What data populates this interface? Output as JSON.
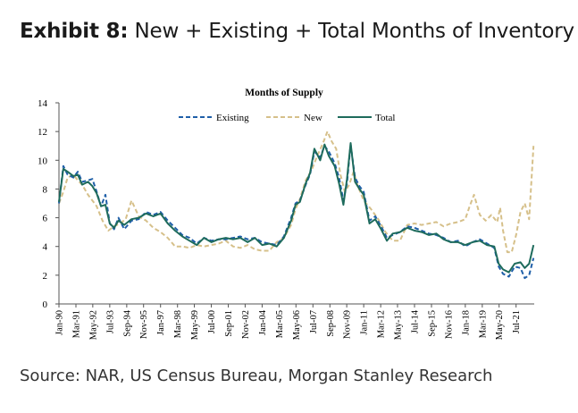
{
  "header": {
    "exhibit_label": "Exhibit 8:",
    "exhibit_title": "New + Existing + Total Months of Inventory"
  },
  "footer": {
    "source": "Source: NAR, US Census Bureau, Morgan Stanley Research"
  },
  "colors": {
    "existing": "#1f5fa8",
    "new": "#d6c08a",
    "total": "#1e6b5c",
    "axis": "#555555"
  },
  "chart_data": {
    "type": "line",
    "title": "Months of Supply",
    "xlabel": "",
    "ylabel": "",
    "ylim": [
      0,
      14
    ],
    "y_ticks": [
      "0",
      "2",
      "4",
      "6",
      "8",
      "10",
      "12",
      "14"
    ],
    "x_range": [
      1990.0,
      2022.75
    ],
    "x_tick_labels": [
      {
        "label": "Jan-90",
        "x": 1990.0
      },
      {
        "label": "Mar-91",
        "x": 1991.17
      },
      {
        "label": "May-92",
        "x": 1992.33
      },
      {
        "label": "Jul-93",
        "x": 1993.5
      },
      {
        "label": "Sep-94",
        "x": 1994.67
      },
      {
        "label": "Nov-95",
        "x": 1995.83
      },
      {
        "label": "Jan-97",
        "x": 1997.0
      },
      {
        "label": "Mar-98",
        "x": 1998.17
      },
      {
        "label": "May-99",
        "x": 1999.33
      },
      {
        "label": "Jul-00",
        "x": 2000.5
      },
      {
        "label": "Sep-01",
        "x": 2001.67
      },
      {
        "label": "Nov-02",
        "x": 2002.83
      },
      {
        "label": "Jan-04",
        "x": 2004.0
      },
      {
        "label": "Mar-05",
        "x": 2005.17
      },
      {
        "label": "May-06",
        "x": 2006.33
      },
      {
        "label": "Jul-07",
        "x": 2007.5
      },
      {
        "label": "Sep-08",
        "x": 2008.67
      },
      {
        "label": "Nov-09",
        "x": 2009.83
      },
      {
        "label": "Jan-11",
        "x": 2011.0
      },
      {
        "label": "Mar-12",
        "x": 2012.17
      },
      {
        "label": "May-13",
        "x": 2013.33
      },
      {
        "label": "Jul-14",
        "x": 2014.5
      },
      {
        "label": "Sep-15",
        "x": 2015.67
      },
      {
        "label": "Nov-16",
        "x": 2016.83
      },
      {
        "label": "Jan-18",
        "x": 2018.0
      },
      {
        "label": "Mar-19",
        "x": 2019.17
      },
      {
        "label": "May-20",
        "x": 2020.33
      },
      {
        "label": "Jul-21",
        "x": 2021.5
      }
    ],
    "legend": {
      "placement": "top",
      "entries": [
        "Existing",
        "New",
        "Total"
      ]
    },
    "series": [
      {
        "name": "Existing",
        "style": "dashed",
        "x": [
          1990.0,
          1990.3,
          1990.6,
          1991.0,
          1991.3,
          1991.6,
          1992.0,
          1992.3,
          1992.6,
          1992.9,
          1993.2,
          1993.5,
          1993.8,
          1994.1,
          1994.5,
          1995.0,
          1995.5,
          1996.0,
          1996.5,
          1997.0,
          1997.5,
          1998.0,
          1998.5,
          1999.0,
          1999.5,
          2000.0,
          2000.5,
          2001.0,
          2001.5,
          2002.0,
          2002.5,
          2003.0,
          2003.5,
          2004.0,
          2004.5,
          2005.0,
          2005.5,
          2006.0,
          2006.3,
          2006.6,
          2007.0,
          2007.3,
          2007.6,
          2008.0,
          2008.3,
          2008.6,
          2009.0,
          2009.3,
          2009.6,
          2009.85,
          2010.1,
          2010.4,
          2010.7,
          2011.0,
          2011.4,
          2011.8,
          2012.2,
          2012.6,
          2013.0,
          2013.5,
          2014.0,
          2014.5,
          2015.0,
          2015.5,
          2016.0,
          2016.5,
          2017.0,
          2017.5,
          2018.0,
          2018.5,
          2019.0,
          2019.5,
          2020.0,
          2020.3,
          2020.6,
          2021.0,
          2021.4,
          2021.8,
          2022.1,
          2022.4,
          2022.7
        ],
        "y": [
          7.0,
          9.6,
          9.0,
          8.8,
          9.2,
          8.5,
          8.6,
          8.7,
          7.8,
          6.8,
          7.6,
          5.6,
          5.2,
          6.0,
          5.2,
          5.8,
          5.9,
          6.4,
          6.2,
          6.4,
          5.8,
          5.3,
          4.8,
          4.6,
          4.2,
          4.6,
          4.4,
          4.5,
          4.5,
          4.6,
          4.7,
          4.5,
          4.6,
          4.3,
          4.2,
          4.1,
          4.7,
          6.0,
          7.0,
          7.2,
          8.3,
          9.0,
          10.6,
          10.2,
          11.0,
          10.6,
          9.8,
          8.8,
          7.2,
          8.4,
          11.1,
          8.8,
          8.2,
          7.8,
          5.8,
          6.1,
          5.4,
          4.6,
          4.8,
          5.0,
          5.4,
          5.3,
          5.1,
          4.9,
          4.8,
          4.6,
          4.3,
          4.4,
          4.0,
          4.3,
          4.5,
          4.2,
          3.9,
          2.6,
          2.1,
          1.9,
          2.6,
          2.5,
          1.8,
          2.0,
          3.2
        ]
      },
      {
        "name": "New",
        "style": "dashed",
        "x": [
          1990.0,
          1990.3,
          1990.6,
          1991.0,
          1991.3,
          1991.6,
          1992.0,
          1992.3,
          1992.6,
          1993.0,
          1993.4,
          1993.8,
          1994.2,
          1994.6,
          1995.0,
          1995.5,
          1996.0,
          1996.5,
          1997.0,
          1997.5,
          1998.0,
          1998.5,
          1999.0,
          1999.5,
          2000.0,
          2000.5,
          2001.0,
          2001.5,
          2002.0,
          2002.5,
          2003.0,
          2003.5,
          2004.0,
          2004.5,
          2005.0,
          2005.5,
          2006.0,
          2006.3,
          2006.6,
          2007.0,
          2007.4,
          2007.8,
          2008.2,
          2008.5,
          2008.8,
          2009.1,
          2009.4,
          2009.7,
          2010.0,
          2010.3,
          2010.6,
          2011.0,
          2011.5,
          2012.0,
          2012.5,
          2013.0,
          2013.5,
          2014.0,
          2014.5,
          2015.0,
          2015.5,
          2016.0,
          2016.5,
          2017.0,
          2017.5,
          2018.0,
          2018.3,
          2018.6,
          2019.0,
          2019.4,
          2019.8,
          2020.2,
          2020.4,
          2020.6,
          2020.9,
          2021.2,
          2021.5,
          2021.8,
          2022.1,
          2022.4,
          2022.7
        ],
        "y": [
          7.0,
          7.8,
          8.8,
          9.0,
          8.6,
          8.3,
          7.6,
          7.2,
          6.8,
          5.8,
          5.1,
          5.4,
          5.6,
          5.9,
          7.2,
          6.1,
          5.8,
          5.3,
          5.0,
          4.6,
          4.0,
          4.0,
          3.9,
          4.1,
          4.0,
          4.1,
          4.2,
          4.4,
          4.0,
          3.9,
          4.1,
          3.8,
          3.7,
          3.7,
          4.3,
          4.6,
          5.5,
          6.6,
          7.3,
          8.6,
          9.3,
          10.3,
          11.2,
          12.0,
          11.3,
          10.8,
          9.0,
          7.8,
          8.3,
          9.2,
          8.2,
          7.2,
          6.6,
          5.9,
          5.0,
          4.4,
          4.4,
          5.5,
          5.6,
          5.5,
          5.6,
          5.7,
          5.4,
          5.6,
          5.7,
          5.9,
          6.8,
          7.6,
          6.2,
          5.8,
          6.2,
          5.7,
          6.7,
          5.1,
          3.6,
          3.6,
          4.8,
          6.4,
          7.0,
          5.9,
          11.0
        ]
      },
      {
        "name": "Total",
        "style": "solid",
        "x": [
          1990.0,
          1990.3,
          1990.6,
          1991.0,
          1991.3,
          1991.6,
          1992.0,
          1992.3,
          1992.6,
          1992.9,
          1993.2,
          1993.5,
          1993.8,
          1994.1,
          1994.5,
          1995.0,
          1995.5,
          1996.0,
          1996.5,
          1997.0,
          1997.5,
          1998.0,
          1998.5,
          1999.0,
          1999.5,
          2000.0,
          2000.5,
          2001.0,
          2001.5,
          2002.0,
          2002.5,
          2003.0,
          2003.5,
          2004.0,
          2004.5,
          2005.0,
          2005.5,
          2006.0,
          2006.3,
          2006.6,
          2007.0,
          2007.3,
          2007.6,
          2008.0,
          2008.3,
          2008.6,
          2009.0,
          2009.3,
          2009.6,
          2009.85,
          2010.1,
          2010.4,
          2010.7,
          2011.0,
          2011.4,
          2011.8,
          2012.2,
          2012.6,
          2013.0,
          2013.5,
          2014.0,
          2014.5,
          2015.0,
          2015.5,
          2016.0,
          2016.5,
          2017.0,
          2017.5,
          2018.0,
          2018.5,
          2019.0,
          2019.5,
          2020.0,
          2020.3,
          2020.6,
          2021.0,
          2021.4,
          2021.8,
          2022.1,
          2022.4,
          2022.7
        ],
        "y": [
          7.1,
          9.4,
          9.2,
          8.9,
          9.0,
          8.3,
          8.5,
          8.2,
          7.7,
          6.8,
          6.9,
          5.6,
          5.3,
          5.8,
          5.5,
          5.9,
          6.0,
          6.3,
          6.1,
          6.3,
          5.6,
          5.1,
          4.7,
          4.4,
          4.1,
          4.6,
          4.3,
          4.5,
          4.6,
          4.5,
          4.6,
          4.3,
          4.6,
          4.1,
          4.2,
          4.0,
          4.6,
          5.8,
          6.9,
          7.1,
          8.4,
          9.1,
          10.8,
          10.0,
          11.1,
          10.3,
          9.6,
          8.4,
          6.9,
          8.7,
          11.2,
          8.5,
          8.0,
          7.6,
          5.6,
          5.9,
          5.2,
          4.4,
          4.9,
          5.0,
          5.3,
          5.1,
          5.0,
          4.8,
          4.9,
          4.5,
          4.3,
          4.3,
          4.1,
          4.3,
          4.4,
          4.1,
          4.0,
          2.8,
          2.4,
          2.2,
          2.8,
          2.9,
          2.5,
          2.8,
          4.1
        ]
      }
    ]
  }
}
